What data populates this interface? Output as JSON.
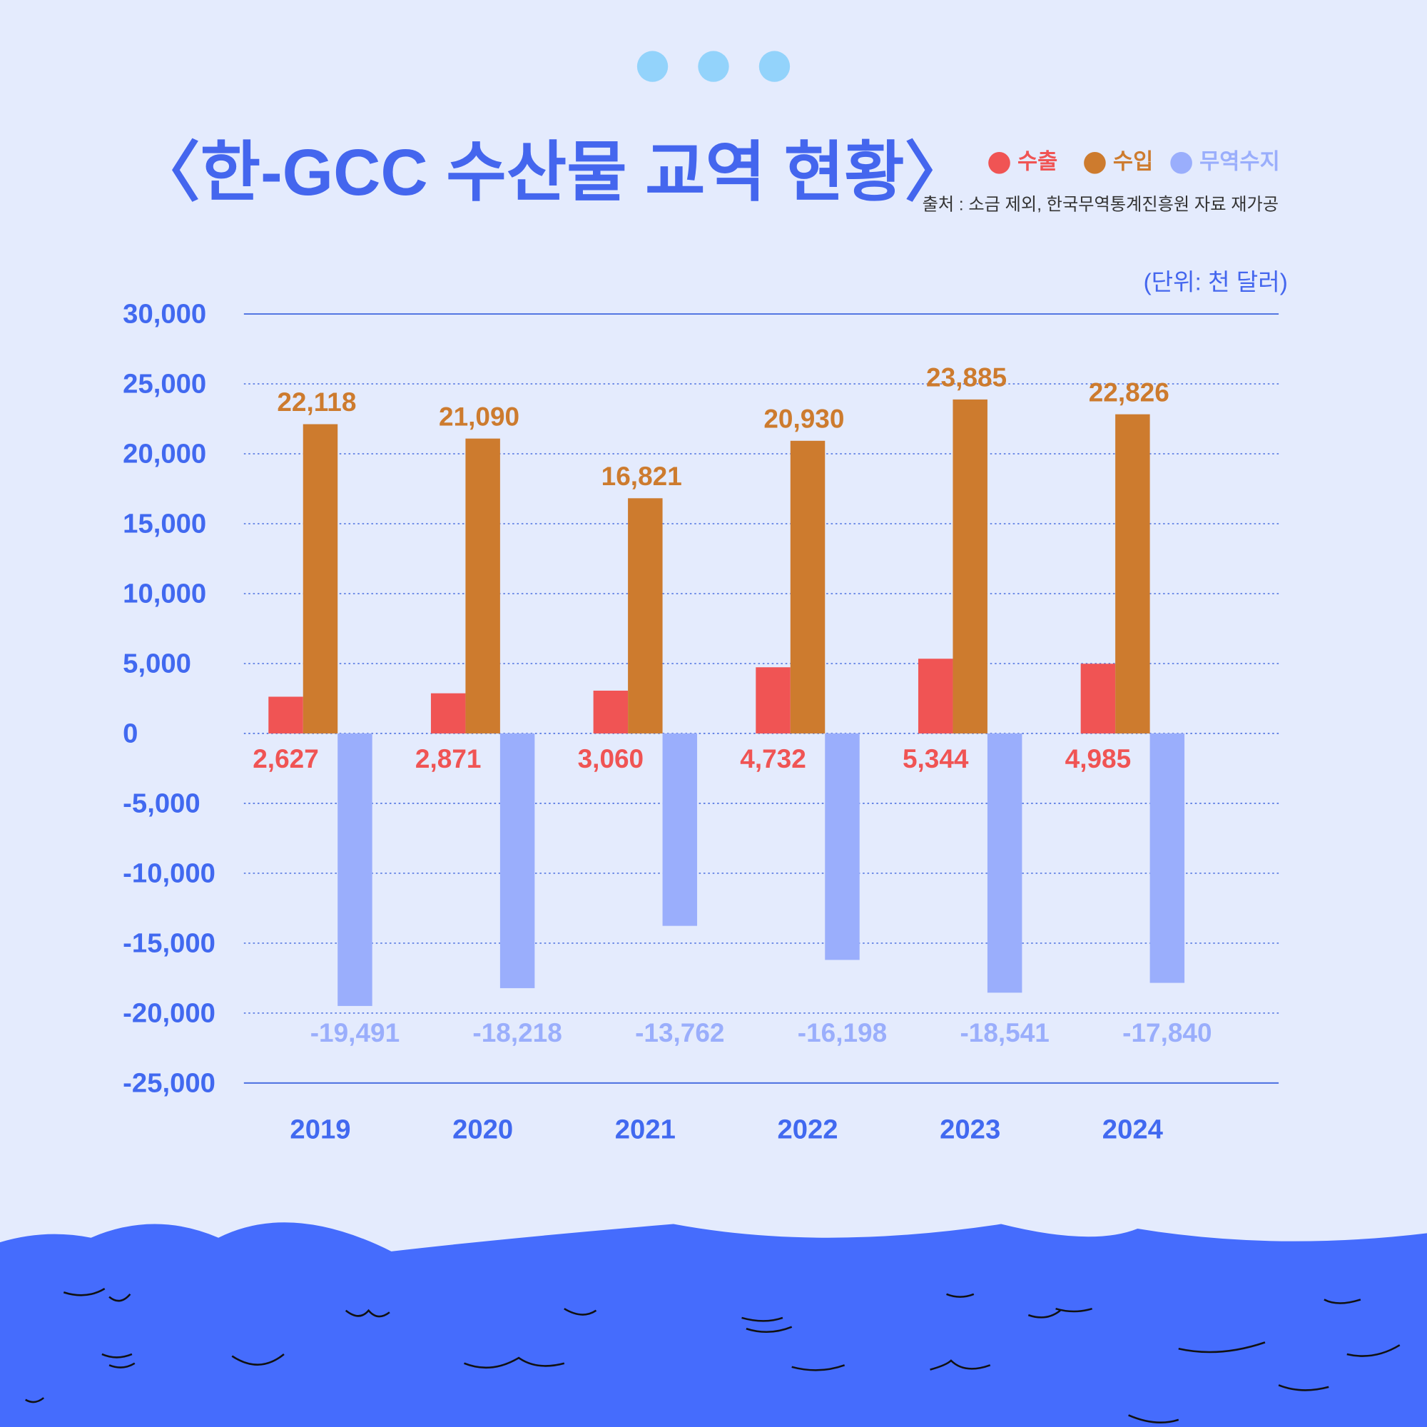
{
  "chart_data": {
    "type": "bar",
    "title": "〈한-GCC 수산물 교역 현황〉",
    "source": "출처 : 소금 제외, 한국무역통계진흥원 자료 재가공",
    "unit": "(단위: 천 달러)",
    "categories": [
      "2019",
      "2020",
      "2021",
      "2022",
      "2023",
      "2024"
    ],
    "series": [
      {
        "name": "수출",
        "color": "#f05454",
        "values": [
          2627,
          2871,
          3060,
          4732,
          5344,
          4985
        ],
        "value_labels": [
          "2,627",
          "2,871",
          "3,060",
          "4,732",
          "5,344",
          "4,985"
        ]
      },
      {
        "name": "수입",
        "color": "#cd7b2e",
        "values": [
          22118,
          21090,
          16821,
          20930,
          23885,
          22826
        ],
        "value_labels": [
          "22,118",
          "21,090",
          "16,821",
          "20,930",
          "23,885",
          "22,826"
        ]
      },
      {
        "name": "무역수지",
        "color": "#9aaefc",
        "values": [
          -19491,
          -18218,
          -13762,
          -16198,
          -18541,
          -17840
        ],
        "value_labels": [
          "-19,491",
          "-18,218",
          "-13,762",
          "-16,198",
          "-18,541",
          "-17,840"
        ]
      }
    ],
    "ylim": [
      -25000,
      30000
    ],
    "yticks": [
      {
        "value": -25000,
        "label": "-25,000"
      },
      {
        "value": -20000,
        "label": "-20,000"
      },
      {
        "value": -15000,
        "label": "-15,000"
      },
      {
        "value": -10000,
        "label": "-10,000"
      },
      {
        "value": -5000,
        "label": "-5,000"
      },
      0,
      {
        "value": 5000,
        "label": "5,000"
      },
      {
        "value": 10000,
        "label": "10,000"
      },
      {
        "value": 15000,
        "label": "15,000"
      },
      {
        "value": 20000,
        "label": "20,000"
      },
      {
        "value": 25000,
        "label": "25,000"
      },
      {
        "value": 30000,
        "label": "30,000"
      }
    ],
    "grid": true
  }
}
